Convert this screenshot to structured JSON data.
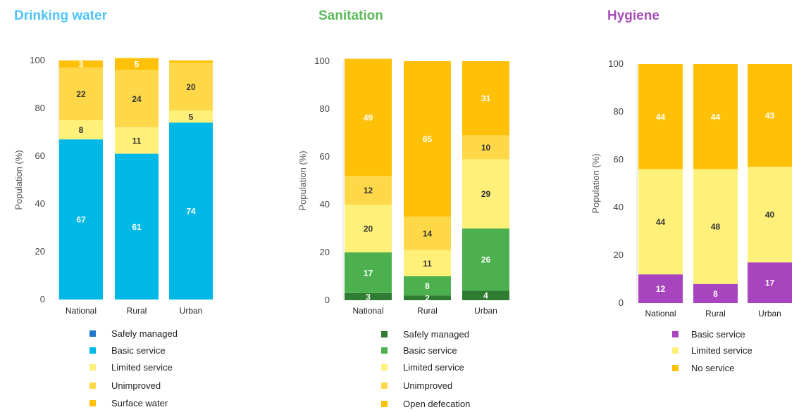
{
  "chart_data": [
    {
      "type": "bar",
      "stacked": true,
      "title": "Drinking water",
      "title_color": "#4FC3F7",
      "ylabel": "Population (%)",
      "ylim": [
        0,
        100
      ],
      "yticks": [
        0,
        20,
        40,
        60,
        80,
        100
      ],
      "categories": [
        "National",
        "Rural",
        "Urban"
      ],
      "series": [
        {
          "name": "Safely managed",
          "color": "#1F78C8",
          "values": [
            0,
            0,
            0
          ],
          "label_color": "#ffffff"
        },
        {
          "name": "Basic service",
          "color": "#00B8E6",
          "values": [
            67,
            61,
            74
          ],
          "label_color": "#ffffff"
        },
        {
          "name": "Limited service",
          "color": "#FFF07A",
          "values": [
            8,
            11,
            5
          ],
          "label_color": "#333333"
        },
        {
          "name": "Unimproved",
          "color": "#FFD84A",
          "values": [
            22,
            24,
            20
          ],
          "label_color": "#333333"
        },
        {
          "name": "Surface water",
          "color": "#FFC107",
          "values": [
            3,
            5,
            1
          ],
          "label_color": "#ffffff"
        }
      ],
      "value_labels": [
        [
          null,
          null,
          null
        ],
        [
          "67",
          "61",
          "74"
        ],
        [
          "8",
          "11",
          "5"
        ],
        [
          "22",
          "24",
          "20"
        ],
        [
          "3",
          "5",
          null
        ]
      ]
    },
    {
      "type": "bar",
      "stacked": true,
      "title": "Sanitation",
      "title_color": "#5CB85C",
      "ylabel": "Population (%)",
      "ylim": [
        0,
        100
      ],
      "yticks": [
        0,
        20,
        40,
        60,
        80,
        100
      ],
      "categories": [
        "National",
        "Rural",
        "Urban"
      ],
      "series": [
        {
          "name": "Safely managed",
          "color": "#2E7D32",
          "values": [
            3,
            2,
            4
          ],
          "label_color": "#ffffff"
        },
        {
          "name": "Basic service",
          "color": "#4CB04E",
          "values": [
            17,
            8,
            26
          ],
          "label_color": "#ffffff"
        },
        {
          "name": "Limited service",
          "color": "#FFF07A",
          "values": [
            20,
            11,
            29
          ],
          "label_color": "#333333"
        },
        {
          "name": "Unimproved",
          "color": "#FFD84A",
          "values": [
            12,
            14,
            10
          ],
          "label_color": "#333333"
        },
        {
          "name": "Open defecation",
          "color": "#FFC107",
          "values": [
            49,
            65,
            31
          ],
          "label_color": "#ffffff"
        }
      ],
      "value_labels": [
        [
          "3",
          "2",
          "4"
        ],
        [
          "17",
          "8",
          "26"
        ],
        [
          "20",
          "11",
          "29"
        ],
        [
          "12",
          "14",
          "10"
        ],
        [
          "49",
          "65",
          "31"
        ]
      ]
    },
    {
      "type": "bar",
      "stacked": true,
      "title": "Hygiene",
      "title_color": "#A64CB8",
      "ylabel": "Population (%)",
      "ylim": [
        0,
        100
      ],
      "yticks": [
        0,
        20,
        40,
        60,
        80,
        100
      ],
      "categories": [
        "National",
        "Rural",
        "Urban"
      ],
      "series": [
        {
          "name": "Basic service",
          "color": "#A845BE",
          "values": [
            12,
            8,
            17
          ],
          "label_color": "#ffffff"
        },
        {
          "name": "Limited service",
          "color": "#FFF07A",
          "values": [
            44,
            48,
            40
          ],
          "label_color": "#333333"
        },
        {
          "name": "No service",
          "color": "#FFC107",
          "values": [
            44,
            44,
            43
          ],
          "label_color": "#ffffff"
        }
      ],
      "value_labels": [
        [
          "12",
          "8",
          "17"
        ],
        [
          "44",
          "48",
          "40"
        ],
        [
          "44",
          "44",
          "43"
        ]
      ]
    }
  ]
}
